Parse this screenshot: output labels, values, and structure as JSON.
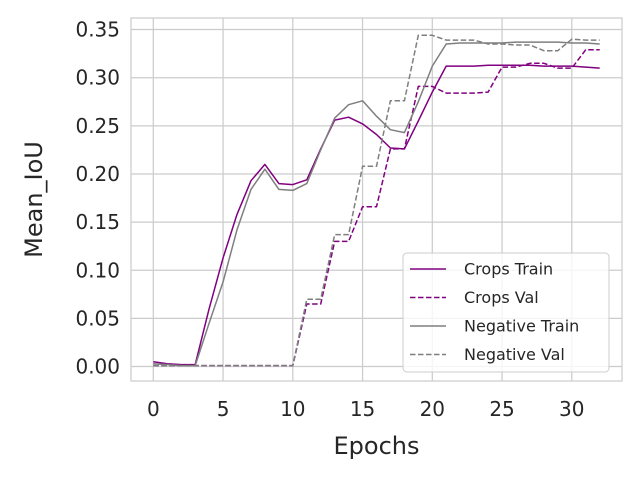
{
  "chart_data": {
    "type": "line",
    "xlabel": "Epochs",
    "ylabel": "Mean_IoU",
    "xlim": [
      -1.6,
      33.6
    ],
    "ylim": [
      -0.015,
      0.362
    ],
    "xticks": [
      0,
      5,
      10,
      15,
      20,
      25,
      30
    ],
    "yticks": [
      0.0,
      0.05,
      0.1,
      0.15,
      0.2,
      0.25,
      0.3,
      0.35
    ],
    "ytick_labels": [
      "0.00",
      "0.05",
      "0.10",
      "0.15",
      "0.20",
      "0.25",
      "0.30",
      "0.35"
    ],
    "grid": true,
    "legend_position": "lower-right",
    "series": [
      {
        "name": "Crops Train",
        "color": "#800080",
        "style": "solid",
        "x": [
          0,
          1,
          2,
          3,
          4,
          5,
          6,
          7,
          8,
          9,
          10,
          11,
          12,
          13,
          14,
          15,
          16,
          17,
          18,
          19,
          20,
          21,
          22,
          23,
          24,
          25,
          26,
          27,
          28,
          29,
          30,
          31,
          32
        ],
        "values": [
          0.005,
          0.003,
          0.002,
          0.002,
          0.06,
          0.113,
          0.158,
          0.193,
          0.21,
          0.19,
          0.189,
          0.194,
          0.226,
          0.256,
          0.259,
          0.252,
          0.241,
          0.227,
          0.226,
          0.255,
          0.285,
          0.312,
          0.312,
          0.312,
          0.313,
          0.313,
          0.313,
          0.313,
          0.312,
          0.312,
          0.312,
          0.311,
          0.31
        ]
      },
      {
        "name": "Crops Val",
        "color": "#800080",
        "style": "dashed",
        "x": [
          0,
          1,
          2,
          3,
          4,
          5,
          6,
          7,
          8,
          9,
          10,
          11,
          12,
          13,
          14,
          15,
          16,
          17,
          18,
          19,
          20,
          21,
          22,
          23,
          24,
          25,
          26,
          27,
          28,
          29,
          30,
          31,
          32
        ],
        "values": [
          0.001,
          0.001,
          0.001,
          0.001,
          0.001,
          0.001,
          0.001,
          0.001,
          0.001,
          0.001,
          0.001,
          0.065,
          0.065,
          0.13,
          0.13,
          0.166,
          0.166,
          0.226,
          0.226,
          0.291,
          0.291,
          0.284,
          0.284,
          0.284,
          0.285,
          0.311,
          0.311,
          0.315,
          0.315,
          0.31,
          0.31,
          0.329,
          0.329
        ]
      },
      {
        "name": "Negative Train",
        "color": "#7f7f7f",
        "style": "solid",
        "x": [
          0,
          1,
          2,
          3,
          4,
          5,
          6,
          7,
          8,
          9,
          10,
          11,
          12,
          13,
          14,
          15,
          16,
          17,
          18,
          19,
          20,
          21,
          22,
          23,
          24,
          25,
          26,
          27,
          28,
          29,
          30,
          31,
          32
        ],
        "values": [
          0.003,
          0.002,
          0.001,
          0.001,
          0.045,
          0.088,
          0.142,
          0.184,
          0.205,
          0.184,
          0.183,
          0.19,
          0.225,
          0.258,
          0.272,
          0.276,
          0.26,
          0.246,
          0.243,
          0.275,
          0.312,
          0.335,
          0.336,
          0.336,
          0.336,
          0.336,
          0.337,
          0.337,
          0.337,
          0.337,
          0.336,
          0.336,
          0.335
        ]
      },
      {
        "name": "Negative Val",
        "color": "#7f7f7f",
        "style": "dashed",
        "x": [
          0,
          1,
          2,
          3,
          4,
          5,
          6,
          7,
          8,
          9,
          10,
          11,
          12,
          13,
          14,
          15,
          16,
          17,
          18,
          19,
          20,
          21,
          22,
          23,
          24,
          25,
          26,
          27,
          28,
          29,
          30,
          31,
          32
        ],
        "values": [
          0.001,
          0.001,
          0.001,
          0.001,
          0.001,
          0.001,
          0.001,
          0.001,
          0.001,
          0.001,
          0.001,
          0.07,
          0.07,
          0.137,
          0.137,
          0.208,
          0.208,
          0.276,
          0.276,
          0.344,
          0.344,
          0.339,
          0.339,
          0.339,
          0.335,
          0.335,
          0.334,
          0.334,
          0.328,
          0.328,
          0.34,
          0.339,
          0.339
        ]
      }
    ]
  }
}
